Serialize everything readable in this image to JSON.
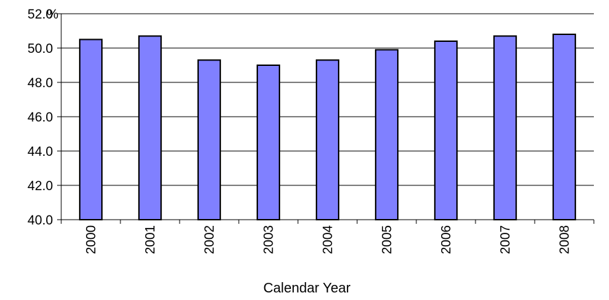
{
  "chart_data": {
    "type": "bar",
    "categories": [
      "2000",
      "2001",
      "2002",
      "2003",
      "2004",
      "2005",
      "2006",
      "2007",
      "2008"
    ],
    "values": [
      50.5,
      50.7,
      49.3,
      49.0,
      49.3,
      49.9,
      50.4,
      50.7,
      50.8
    ],
    "ylim": [
      40.0,
      52.0
    ],
    "yticks": [
      "40.0",
      "42.0",
      "44.0",
      "46.0",
      "48.0",
      "50.0",
      "52.0"
    ],
    "ylabel": "%",
    "xlabel": "Calendar Year",
    "grid": true,
    "bar_color": "#8080ff"
  }
}
